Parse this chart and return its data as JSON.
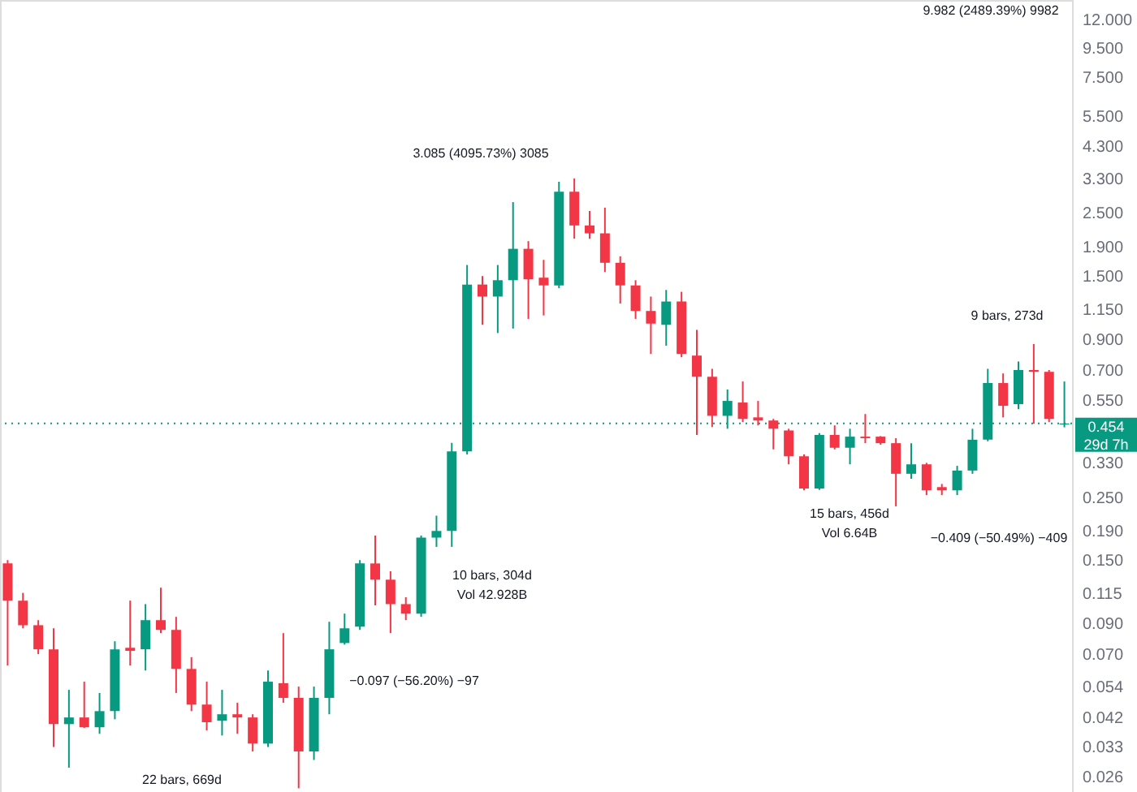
{
  "chart_data": {
    "type": "candlestick",
    "log": true,
    "categories": [
      null,
      null,
      null,
      null,
      null,
      null,
      null,
      null,
      null,
      null,
      null,
      null,
      null,
      null,
      null,
      null,
      null,
      null,
      null,
      null,
      null,
      null,
      null,
      null,
      null,
      null,
      null,
      null,
      null,
      null,
      null,
      null,
      null,
      null,
      null,
      null,
      null,
      null,
      null,
      null,
      null,
      null,
      null,
      null,
      null,
      null,
      null,
      null,
      null,
      null,
      null,
      null,
      null,
      null,
      null,
      null,
      null,
      null,
      null,
      null,
      null,
      null,
      null,
      null,
      null,
      null,
      null,
      null,
      null,
      null
    ],
    "ohlc": [
      [
        0.146,
        0.15,
        0.0638,
        0.108
      ],
      [
        0.108,
        0.115,
        0.0863,
        0.0885
      ],
      [
        0.0885,
        0.0922,
        0.07,
        0.0728
      ],
      [
        0.0728,
        0.0863,
        0.033,
        0.0397
      ],
      [
        0.0397,
        0.0524,
        0.0279,
        0.0419
      ],
      [
        0.0419,
        0.056,
        0.0385,
        0.0387
      ],
      [
        0.0387,
        0.0511,
        0.0367,
        0.0441
      ],
      [
        0.0441,
        0.0777,
        0.0413,
        0.0728
      ],
      [
        0.0737,
        0.108,
        0.0638,
        0.0719
      ],
      [
        0.0728,
        0.105,
        0.0613,
        0.0922
      ],
      [
        0.0922,
        0.12,
        0.083,
        0.0852
      ],
      [
        0.0852,
        0.0947,
        0.0511,
        0.0621
      ],
      [
        0.0621,
        0.0683,
        0.0441,
        0.0465
      ],
      [
        0.0465,
        0.056,
        0.0377,
        0.0403
      ],
      [
        0.0408,
        0.0524,
        0.0362,
        0.043
      ],
      [
        0.043,
        0.0472,
        0.0367,
        0.0419
      ],
      [
        0.0419,
        0.043,
        0.0318,
        0.0339
      ],
      [
        0.0339,
        0.0613,
        0.033,
        0.056
      ],
      [
        0.0553,
        0.083,
        0.0472,
        0.0491
      ],
      [
        0.0491,
        0.0538,
        0.0236,
        0.0318
      ],
      [
        0.0318,
        0.0538,
        0.0297,
        0.0491
      ],
      [
        0.0491,
        0.091,
        0.043,
        0.0728
      ],
      [
        0.0766,
        0.0972,
        0.0756,
        0.0863
      ],
      [
        0.0874,
        0.15,
        0.0852,
        0.146
      ],
      [
        0.146,
        0.183,
        0.104,
        0.128
      ],
      [
        0.128,
        0.137,
        0.083,
        0.105
      ],
      [
        0.105,
        0.111,
        0.0922,
        0.0972
      ],
      [
        0.0972,
        0.183,
        0.0947,
        0.18
      ],
      [
        0.18,
        0.215,
        0.167,
        0.19
      ],
      [
        0.19,
        0.388,
        0.167,
        0.362
      ],
      [
        0.362,
        1.64,
        0.353,
        1.4
      ],
      [
        1.4,
        1.5,
        1.01,
        1.27
      ],
      [
        1.27,
        1.64,
        0.945,
        1.45
      ],
      [
        1.45,
        2.73,
        0.98,
        1.87
      ],
      [
        1.87,
        1.99,
        1.06,
        1.46
      ],
      [
        1.48,
        1.71,
        1.09,
        1.39
      ],
      [
        1.39,
        3.22,
        1.36,
        2.97
      ],
      [
        2.97,
        3.31,
        2.03,
        2.26
      ],
      [
        2.26,
        2.54,
        2.03,
        2.12
      ],
      [
        2.12,
        2.61,
        1.55,
        1.67
      ],
      [
        1.67,
        1.76,
        1.2,
        1.39
      ],
      [
        1.39,
        1.45,
        1.06,
        1.13
      ],
      [
        1.13,
        1.27,
        0.797,
        1.02
      ],
      [
        1.01,
        1.34,
        0.853,
        1.22
      ],
      [
        1.22,
        1.32,
        0.777,
        0.797
      ],
      [
        0.787,
        0.97,
        0.414,
        0.663
      ],
      [
        0.663,
        0.707,
        0.441,
        0.483
      ],
      [
        0.483,
        0.598,
        0.435,
        0.545
      ],
      [
        0.538,
        0.638,
        0.459,
        0.471
      ],
      [
        0.477,
        0.545,
        0.447,
        0.465
      ],
      [
        0.465,
        0.471,
        0.368,
        0.435
      ],
      [
        0.429,
        0.435,
        0.326,
        0.348
      ],
      [
        0.348,
        0.353,
        0.264,
        0.268
      ],
      [
        0.268,
        0.42,
        0.265,
        0.414
      ],
      [
        0.414,
        0.447,
        0.368,
        0.373
      ],
      [
        0.373,
        0.435,
        0.326,
        0.408
      ],
      [
        0.408,
        0.49,
        0.387,
        0.403
      ],
      [
        0.408,
        0.41,
        0.382,
        0.387
      ],
      [
        0.387,
        0.403,
        0.232,
        0.302
      ],
      [
        0.302,
        0.387,
        0.29,
        0.326
      ],
      [
        0.326,
        0.33,
        0.254,
        0.264
      ],
      [
        0.271,
        0.278,
        0.254,
        0.264
      ],
      [
        0.264,
        0.322,
        0.254,
        0.31
      ],
      [
        0.31,
        0.435,
        0.302,
        0.398
      ],
      [
        0.398,
        0.707,
        0.393,
        0.63
      ],
      [
        0.63,
        0.681,
        0.477,
        0.524
      ],
      [
        0.531,
        0.75,
        0.51,
        0.7
      ],
      [
        0.7,
        0.864,
        0.453,
        0.69
      ],
      [
        0.69,
        0.7,
        0.459,
        0.471
      ],
      [
        0.45,
        0.638,
        0.44,
        0.454
      ]
    ],
    "colors": [
      "#f23645",
      "#f23645",
      "#f23645",
      "#f23645",
      "#089981",
      "#f23645",
      "#089981",
      "#089981",
      "#f23645",
      "#089981",
      "#f23645",
      "#f23645",
      "#f23645",
      "#f23645",
      "#089981",
      "#f23645",
      "#f23645",
      "#089981",
      "#f23645",
      "#f23645",
      "#089981",
      "#089981",
      "#089981",
      "#089981",
      "#f23645",
      "#f23645",
      "#f23645",
      "#089981",
      "#089981",
      "#089981",
      "#089981",
      "#f23645",
      "#089981",
      "#089981",
      "#f23645",
      "#f23645",
      "#089981",
      "#f23645",
      "#f23645",
      "#f23645",
      "#f23645",
      "#f23645",
      "#f23645",
      "#089981",
      "#f23645",
      "#f23645",
      "#f23645",
      "#089981",
      "#f23645",
      "#f23645",
      "#f23645",
      "#f23645",
      "#f23645",
      "#089981",
      "#f23645",
      "#089981",
      "#f23645",
      "#f23645",
      "#f23645",
      "#089981",
      "#f23645",
      "#f23645",
      "#089981",
      "#089981",
      "#089981",
      "#f23645",
      "#089981",
      "#f23645",
      "#f23645",
      "#089981"
    ],
    "ref_lines": [
      {
        "axis": "y",
        "value": 0.454,
        "label": "0.454\n29d 7h",
        "color": "#089981",
        "line_style": "dotted"
      }
    ],
    "annotations": [
      "3.085 (4095.73%) 3085",
      "10 bars, 304d",
      "Vol 42.928B",
      "−0.097 (−56.20%) −97",
      "22 bars, 669d",
      "15 bars, 456d",
      "Vol 6.64B",
      "−0.409 (−50.49%) −409",
      "9 bars, 273d",
      "9.982 (2489.39%) 9982"
    ],
    "tick_labels": "y",
    "ylim": [
      0.0229,
      14.05
    ],
    "yticks": [
      {
        "value": 0.026,
        "label": "0.026"
      },
      {
        "value": 0.033,
        "label": "0.033"
      },
      {
        "value": 0.042,
        "label": "0.042"
      },
      {
        "value": 0.054,
        "label": "0.054"
      },
      {
        "value": 0.07,
        "label": "0.070"
      },
      {
        "value": 0.09,
        "label": "0.090"
      },
      {
        "value": 0.115,
        "label": "0.115"
      },
      {
        "value": 0.15,
        "label": "0.150"
      },
      {
        "value": 0.19,
        "label": "0.190"
      },
      {
        "value": 0.25,
        "label": "0.250"
      },
      {
        "value": 0.33,
        "label": "0.330"
      },
      {
        "value": 0.55,
        "label": "0.550"
      },
      {
        "value": 0.7,
        "label": "0.700"
      },
      {
        "value": 0.9,
        "label": "0.900"
      },
      {
        "value": 1.15,
        "label": "1.150"
      },
      {
        "value": 1.5,
        "label": "1.500"
      },
      {
        "value": 1.9,
        "label": "1.900"
      },
      {
        "value": 2.5,
        "label": "2.500"
      },
      {
        "value": 3.3,
        "label": "3.300"
      },
      {
        "value": 4.3,
        "label": "4.300"
      },
      {
        "value": 5.5,
        "label": "5.500"
      },
      {
        "value": 7.5,
        "label": "7.500"
      },
      {
        "value": 9.5,
        "label": "9.500"
      },
      {
        "value": 12,
        "label": "12.000"
      }
    ]
  }
}
